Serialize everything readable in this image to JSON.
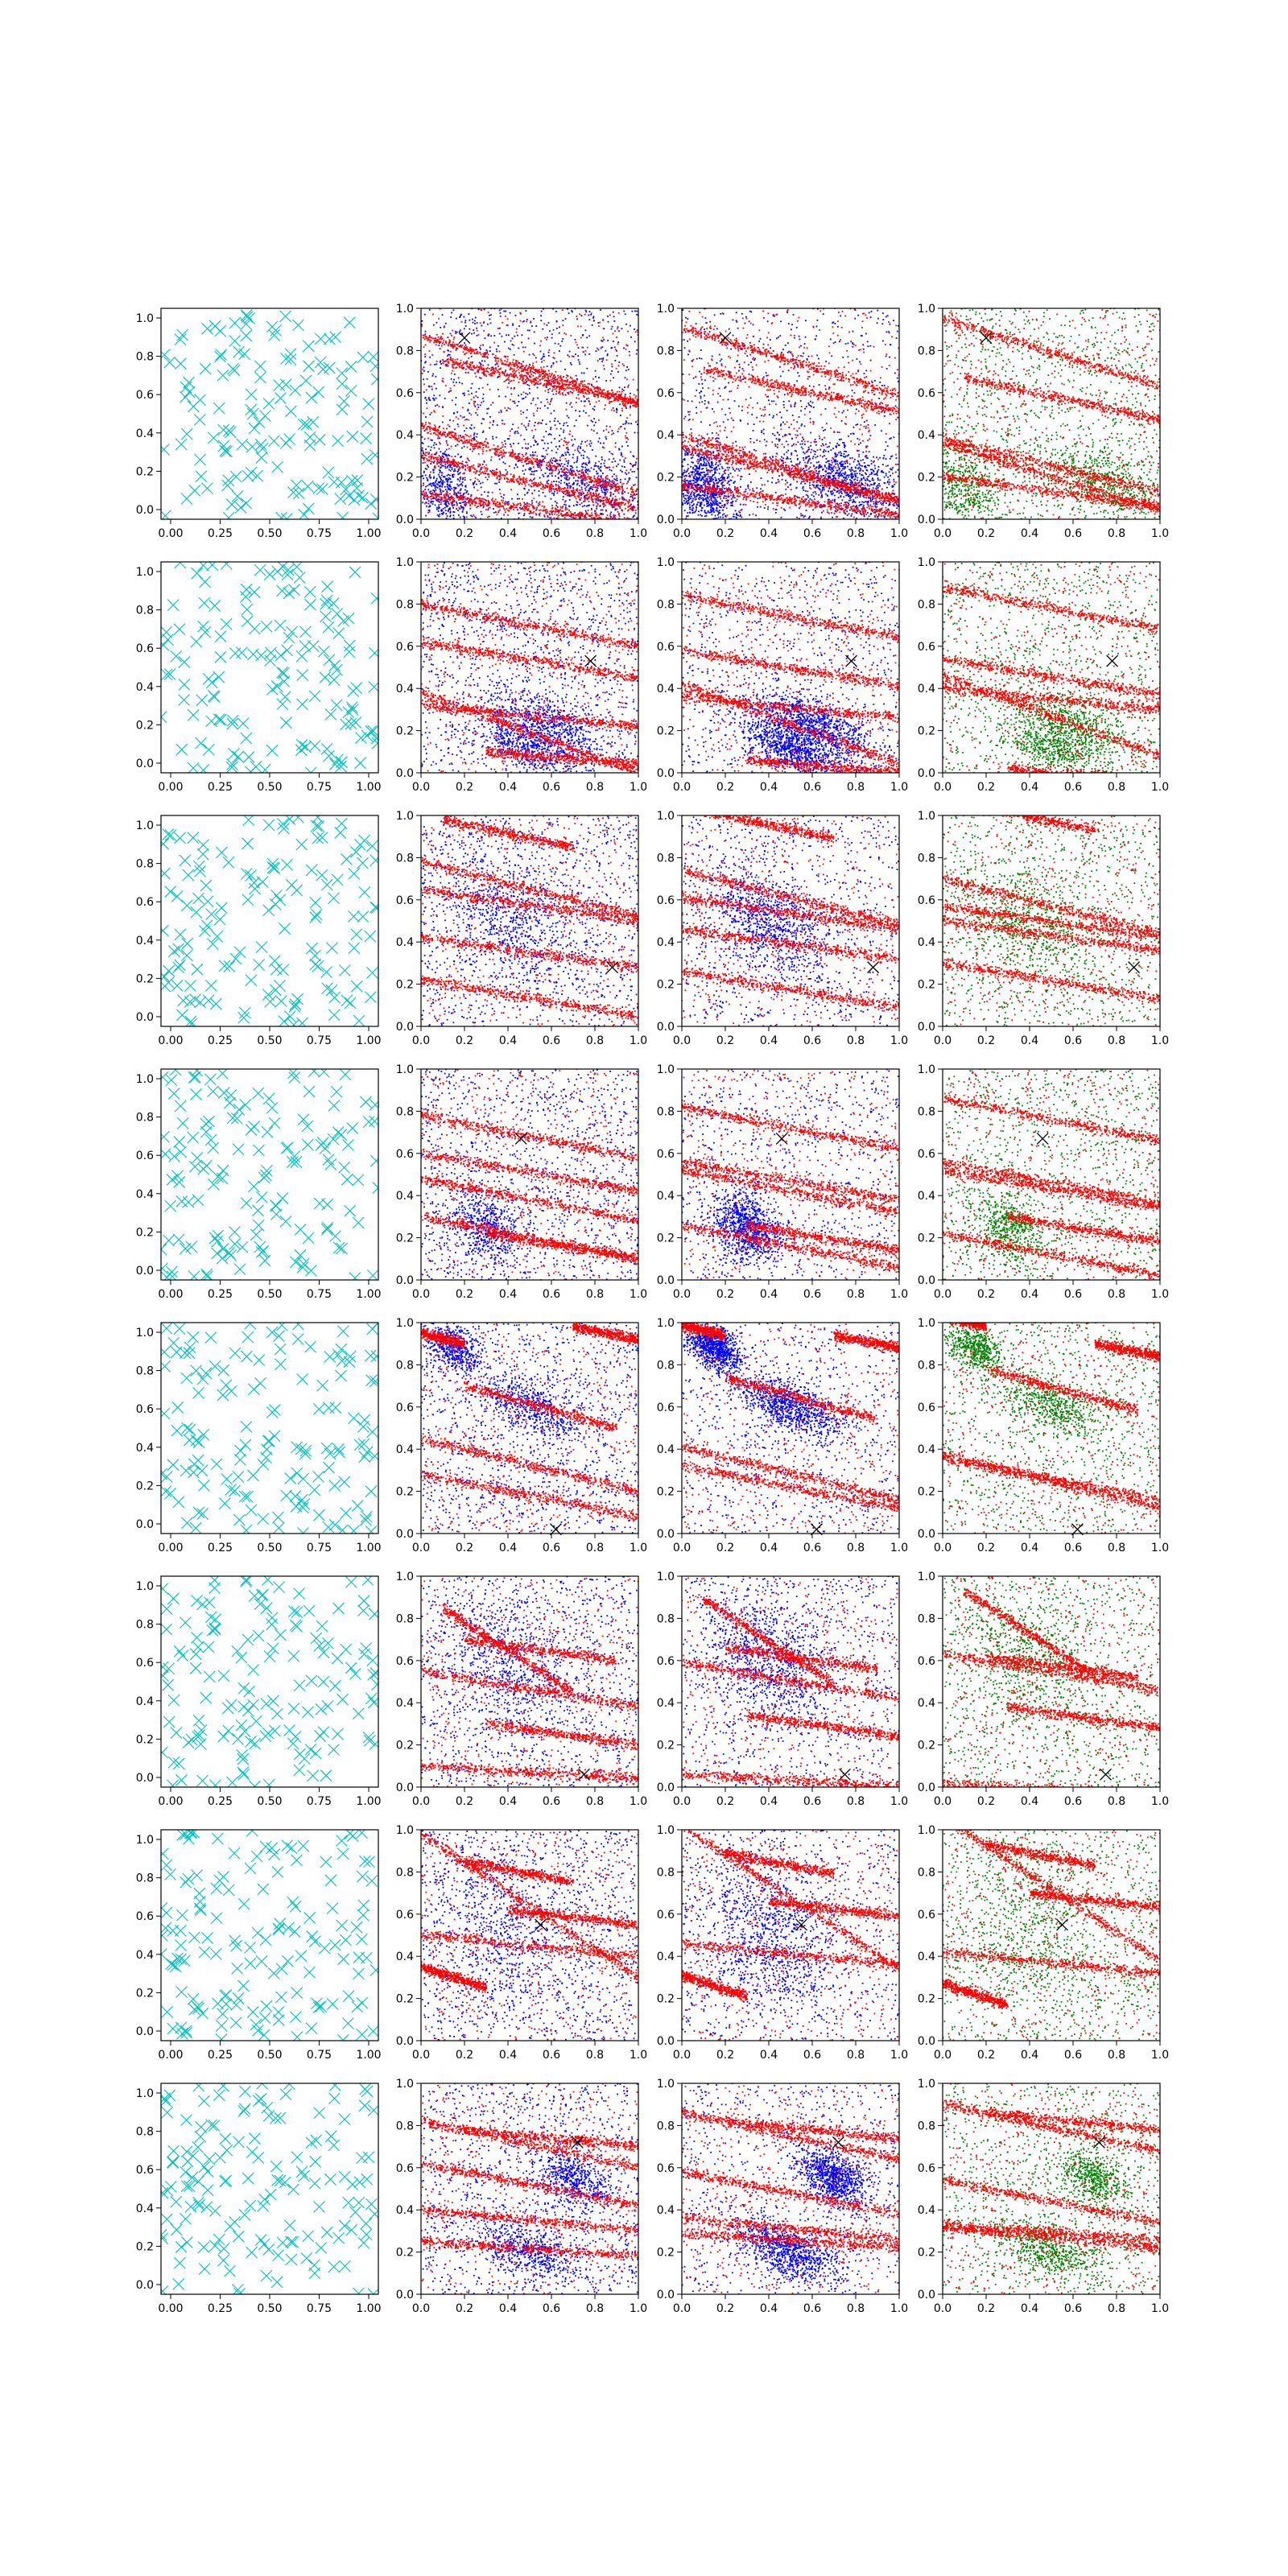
{
  "figure": {
    "rows": 8,
    "cols": 4,
    "colors": {
      "cyan": "#00bfbf",
      "red": "#ff0000",
      "blue": "#0000ff",
      "green": "#008000",
      "marker": "#000000",
      "axes": "#000000"
    }
  },
  "chart_data": {
    "type": "scatter",
    "layout": "8x4 grid of scatter panels",
    "xlim": [
      0,
      1
    ],
    "ylim": [
      0,
      1
    ],
    "grid": false,
    "legend": "none",
    "col0_x_ticks": [
      "0.00",
      "0.25",
      "0.50",
      "0.75",
      "1.00"
    ],
    "x_ticks": [
      "0.0",
      "0.2",
      "0.4",
      "0.6",
      "0.8",
      "1.0"
    ],
    "y_ticks": [
      "0.0",
      "0.2",
      "0.4",
      "0.6",
      "0.8",
      "1.0"
    ],
    "columns": [
      {
        "marker": "x",
        "color": "cyan",
        "description_data": "about 150 uniformly random points per panel"
      },
      {
        "marker": "dot",
        "colors": [
          "blue",
          "red"
        ]
      },
      {
        "marker": "dot",
        "colors": [
          "blue",
          "red"
        ]
      },
      {
        "marker": "dot",
        "colors": [
          "green",
          "red"
        ]
      }
    ],
    "rows": [
      {
        "x_marker": [
          0.2,
          0.86
        ],
        "red_bands": [
          {
            "x": [
              0,
              1
            ],
            "y0": 0.87,
            "y1": 0.55
          },
          {
            "x": [
              0,
              1
            ],
            "y0": 0.44,
            "y1": 0.12
          },
          {
            "x": [
              0,
              1
            ],
            "y0": 0.12,
            "y1": -0.02
          },
          {
            "x": [
              0.1,
              1
            ],
            "y0": 0.75,
            "y1": 0.55
          },
          {
            "x": [
              0,
              1
            ],
            "y0": 0.3,
            "y1": 0.05
          }
        ],
        "blue_clusters": [
          {
            "cx": 0.1,
            "cy": 0.15,
            "sx": 0.08,
            "sy": 0.1
          },
          {
            "cx": 0.75,
            "cy": 0.18,
            "sx": 0.15,
            "sy": 0.08
          }
        ]
      },
      {
        "x_marker": [
          0.78,
          0.53
        ],
        "red_bands": [
          {
            "x": [
              0,
              1
            ],
            "y0": 0.38,
            "y1": 0.0
          },
          {
            "x": [
              0.3,
              1
            ],
            "y0": 0.1,
            "y1": 0.04
          },
          {
            "x": [
              0,
              1
            ],
            "y0": 0.8,
            "y1": 0.6
          },
          {
            "x": [
              0,
              1
            ],
            "y0": 0.62,
            "y1": 0.45
          },
          {
            "x": [
              0,
              1
            ],
            "y0": 0.32,
            "y1": 0.22
          }
        ],
        "blue_clusters": [
          {
            "cx": 0.6,
            "cy": 0.23,
            "sx": 0.14,
            "sy": 0.06
          },
          {
            "cx": 0.5,
            "cy": 0.12,
            "sx": 0.12,
            "sy": 0.06
          }
        ]
      },
      {
        "x_marker": [
          0.88,
          0.28
        ],
        "red_bands": [
          {
            "x": [
              0.1,
              0.7
            ],
            "y0": 0.98,
            "y1": 0.85
          },
          {
            "x": [
              0,
              1
            ],
            "y0": 0.78,
            "y1": 0.52
          },
          {
            "x": [
              0,
              1
            ],
            "y0": 0.22,
            "y1": 0.05
          },
          {
            "x": [
              0,
              1
            ],
            "y0": 0.65,
            "y1": 0.5
          },
          {
            "x": [
              0,
              1
            ],
            "y0": 0.42,
            "y1": 0.28
          }
        ],
        "blue_clusters": [
          {
            "cx": 0.4,
            "cy": 0.5,
            "sx": 0.15,
            "sy": 0.12
          }
        ]
      },
      {
        "x_marker": [
          0.46,
          0.67
        ],
        "red_bands": [
          {
            "x": [
              0,
              1
            ],
            "y0": 0.78,
            "y1": 0.58
          },
          {
            "x": [
              0,
              1
            ],
            "y0": 0.6,
            "y1": 0.42
          },
          {
            "x": [
              0,
              1
            ],
            "y0": 0.48,
            "y1": 0.28
          },
          {
            "x": [
              0,
              1
            ],
            "y0": 0.3,
            "y1": 0.1
          },
          {
            "x": [
              0.3,
              1
            ],
            "y0": 0.22,
            "y1": 0.1
          }
        ],
        "blue_clusters": [
          {
            "cx": 0.3,
            "cy": 0.25,
            "sx": 0.08,
            "sy": 0.08
          }
        ]
      },
      {
        "x_marker": [
          0.62,
          0.02
        ],
        "red_bands": [
          {
            "x": [
              0,
              0.2
            ],
            "y0": 0.95,
            "y1": 0.9
          },
          {
            "x": [
              0.7,
              1
            ],
            "y0": 0.98,
            "y1": 0.92
          },
          {
            "x": [
              0.2,
              0.9
            ],
            "y0": 0.7,
            "y1": 0.5
          },
          {
            "x": [
              0,
              1
            ],
            "y0": 0.45,
            "y1": 0.2
          },
          {
            "x": [
              0,
              1
            ],
            "y0": 0.28,
            "y1": 0.08
          }
        ],
        "blue_clusters": [
          {
            "cx": 0.5,
            "cy": 0.6,
            "sx": 0.12,
            "sy": 0.06
          },
          {
            "cx": 0.15,
            "cy": 0.88,
            "sx": 0.06,
            "sy": 0.05
          }
        ]
      },
      {
        "x_marker": [
          0.75,
          0.06
        ],
        "red_bands": [
          {
            "x": [
              0.1,
              0.7
            ],
            "y0": 0.85,
            "y1": 0.45
          },
          {
            "x": [
              0.2,
              0.9
            ],
            "y0": 0.7,
            "y1": 0.6
          },
          {
            "x": [
              0.3,
              1
            ],
            "y0": 0.3,
            "y1": 0.2
          },
          {
            "x": [
              0,
              1
            ],
            "y0": 0.1,
            "y1": 0.04
          },
          {
            "x": [
              0,
              1
            ],
            "y0": 0.55,
            "y1": 0.38
          }
        ],
        "blue_clusters": [
          {
            "cx": 0.4,
            "cy": 0.6,
            "sx": 0.15,
            "sy": 0.15
          }
        ]
      },
      {
        "x_marker": [
          0.55,
          0.55
        ],
        "red_bands": [
          {
            "x": [
              0,
              1
            ],
            "y0": 0.98,
            "y1": 0.3
          },
          {
            "x": [
              0,
              0.3
            ],
            "y0": 0.35,
            "y1": 0.25
          },
          {
            "x": [
              0.4,
              1
            ],
            "y0": 0.62,
            "y1": 0.55
          },
          {
            "x": [
              0,
              1
            ],
            "y0": 0.5,
            "y1": 0.4
          },
          {
            "x": [
              0.2,
              0.7
            ],
            "y0": 0.85,
            "y1": 0.75
          }
        ],
        "blue_clusters": [
          {
            "cx": 0.4,
            "cy": 0.5,
            "sx": 0.15,
            "sy": 0.2
          }
        ]
      },
      {
        "x_marker": [
          0.72,
          0.72
        ],
        "red_bands": [
          {
            "x": [
              0,
              1
            ],
            "y0": 0.82,
            "y1": 0.6
          },
          {
            "x": [
              0,
              1
            ],
            "y0": 0.62,
            "y1": 0.42
          },
          {
            "x": [
              0,
              1
            ],
            "y0": 0.25,
            "y1": 0.18
          },
          {
            "x": [
              0,
              1
            ],
            "y0": 0.4,
            "y1": 0.3
          },
          {
            "x": [
              0.2,
              1
            ],
            "y0": 0.78,
            "y1": 0.7
          }
        ],
        "blue_clusters": [
          {
            "cx": 0.7,
            "cy": 0.55,
            "sx": 0.08,
            "sy": 0.06
          },
          {
            "cx": 0.5,
            "cy": 0.2,
            "sx": 0.12,
            "sy": 0.06
          }
        ]
      }
    ]
  }
}
